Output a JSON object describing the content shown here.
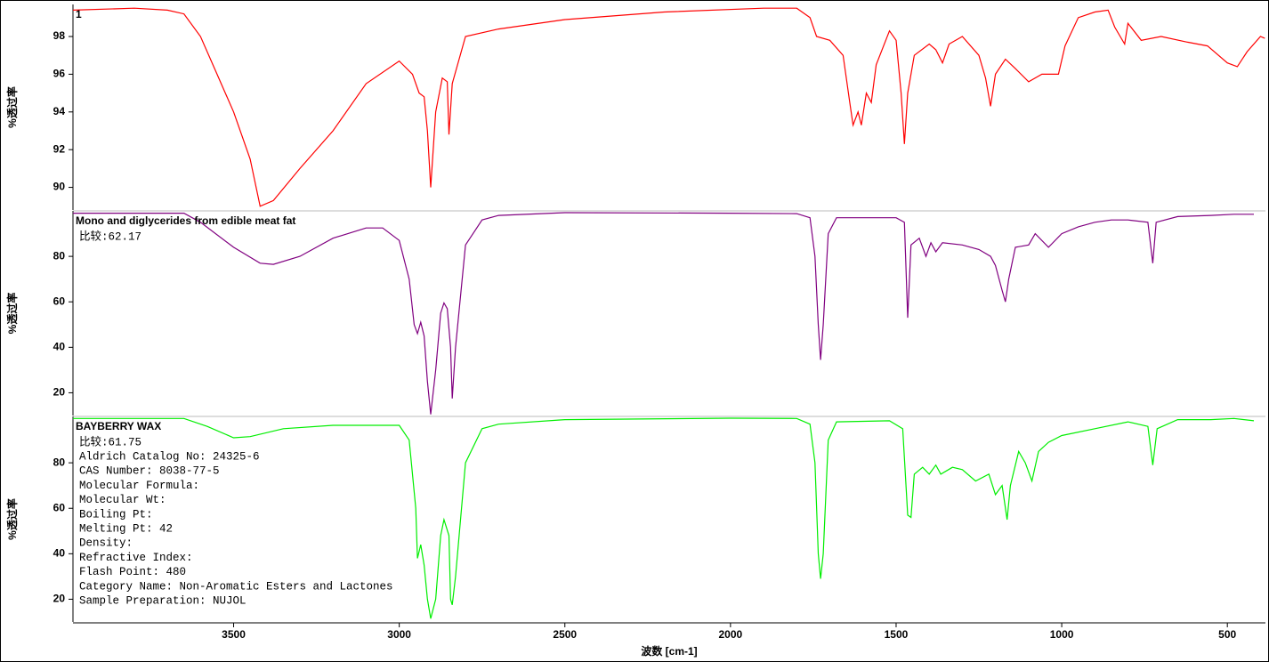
{
  "chart_data": [
    {
      "type": "line",
      "annotations": [
        "1"
      ],
      "y_label": "%透过率",
      "xlim": [
        3985,
        385
      ],
      "ylim": [
        88.8,
        99.7
      ],
      "yticks": [
        90,
        92,
        94,
        96,
        98
      ],
      "x": [
        3985,
        3800,
        3700,
        3650,
        3600,
        3550,
        3500,
        3450,
        3420,
        3380,
        3300,
        3200,
        3100,
        3000,
        2960,
        2940,
        2925,
        2915,
        2905,
        2890,
        2870,
        2855,
        2850,
        2840,
        2800,
        2700,
        2500,
        2200,
        1900,
        1800,
        1760,
        1740,
        1700,
        1660,
        1640,
        1630,
        1615,
        1605,
        1590,
        1575,
        1560,
        1520,
        1500,
        1485,
        1475,
        1465,
        1445,
        1400,
        1380,
        1360,
        1340,
        1300,
        1250,
        1230,
        1215,
        1200,
        1170,
        1140,
        1100,
        1060,
        1030,
        1010,
        990,
        950,
        900,
        860,
        840,
        810,
        800,
        760,
        700,
        620,
        560,
        500,
        470,
        440,
        400,
        387
      ],
      "series": [
        {
          "color": "#ff0000",
          "values": [
            99.4,
            99.5,
            99.4,
            99.2,
            98.0,
            96.0,
            94.0,
            91.5,
            89.0,
            89.3,
            91.0,
            93.0,
            95.5,
            96.7,
            96.0,
            95.0,
            94.8,
            93.0,
            90.0,
            94.0,
            95.8,
            95.6,
            92.8,
            95.5,
            98.0,
            98.4,
            98.9,
            99.3,
            99.5,
            99.5,
            99.0,
            98.0,
            97.8,
            97.0,
            94.5,
            93.3,
            94.0,
            93.3,
            95.0,
            94.5,
            96.5,
            98.3,
            97.8,
            95.0,
            92.3,
            95.0,
            97.0,
            97.6,
            97.3,
            96.6,
            97.6,
            98.0,
            97.0,
            95.8,
            94.3,
            96.0,
            96.8,
            96.3,
            95.6,
            96.0,
            96.0,
            96.0,
            97.5,
            99.0,
            99.3,
            99.4,
            98.5,
            97.6,
            98.7,
            97.8,
            98.0,
            97.7,
            97.5,
            96.6,
            96.4,
            97.2,
            98.0,
            97.9
          ]
        }
      ]
    },
    {
      "type": "line",
      "title": "Mono and diglycerides from edible meat fat",
      "annotations": [
        "比较:62.17"
      ],
      "y_label": "%透过率",
      "xlim": [
        3985,
        385
      ],
      "ylim": [
        10,
        100
      ],
      "yticks": [
        20,
        40,
        60,
        80
      ],
      "x": [
        3985,
        3650,
        3600,
        3500,
        3420,
        3380,
        3300,
        3200,
        3100,
        3050,
        3000,
        2970,
        2955,
        2945,
        2935,
        2925,
        2915,
        2905,
        2890,
        2875,
        2865,
        2855,
        2845,
        2840,
        2830,
        2800,
        2750,
        2700,
        2500,
        2000,
        1800,
        1760,
        1745,
        1735,
        1728,
        1720,
        1705,
        1680,
        1500,
        1475,
        1465,
        1455,
        1430,
        1410,
        1395,
        1380,
        1360,
        1300,
        1250,
        1215,
        1200,
        1180,
        1170,
        1160,
        1140,
        1100,
        1080,
        1040,
        1000,
        950,
        900,
        850,
        800,
        740,
        725,
        715,
        650,
        550,
        480,
        420
      ],
      "series": [
        {
          "color": "#800080",
          "values": [
            99,
            99,
            95,
            84,
            77,
            76.5,
            80,
            88,
            92.5,
            92.5,
            87,
            70,
            50,
            46,
            51,
            45,
            25,
            10.5,
            30,
            55,
            59.5,
            57,
            40,
            17.5,
            40,
            85,
            96,
            98,
            99.2,
            99,
            98.8,
            97,
            80,
            50,
            34.5,
            50,
            90,
            97,
            97,
            95,
            53,
            85,
            88,
            80,
            86,
            82,
            86,
            85,
            83,
            80,
            76,
            65,
            60,
            70,
            84,
            85,
            90,
            84,
            90,
            93,
            95,
            96,
            96,
            95,
            77,
            95,
            97.5,
            98,
            98.5,
            98.5
          ]
        }
      ]
    },
    {
      "type": "line",
      "title": "BAYBERRY WAX",
      "annotations": [
        "比较:61.75",
        "Aldrich Catalog No:  24325-6",
        "CAS Number:  8038-77-5",
        "Molecular Formula:",
        "Molecular Wt:",
        "Boiling Pt:",
        "Melting Pt:  42",
        "Density:",
        "Refractive Index:",
        "Flash Point:  480",
        "Category Name:  Non-Aromatic Esters and Lactones",
        "Sample Preparation:  NUJOL"
      ],
      "y_label": "%透过率",
      "x_label": "波数 [cm-1]",
      "xlim": [
        3985,
        385
      ],
      "ylim": [
        10,
        100.4
      ],
      "yticks": [
        20,
        40,
        60,
        80
      ],
      "xticks": [
        3500,
        3000,
        2500,
        2000,
        1500,
        1000,
        500
      ],
      "x": [
        3985,
        3650,
        3580,
        3500,
        3450,
        3350,
        3200,
        3000,
        2970,
        2950,
        2945,
        2935,
        2925,
        2915,
        2905,
        2890,
        2875,
        2865,
        2850,
        2845,
        2840,
        2830,
        2800,
        2750,
        2700,
        2500,
        2000,
        1800,
        1760,
        1745,
        1735,
        1728,
        1720,
        1705,
        1680,
        1520,
        1480,
        1465,
        1455,
        1445,
        1420,
        1400,
        1380,
        1365,
        1330,
        1300,
        1260,
        1220,
        1200,
        1180,
        1165,
        1155,
        1130,
        1110,
        1090,
        1070,
        1040,
        1000,
        900,
        800,
        740,
        725,
        712,
        650,
        550,
        480,
        420
      ],
      "series": [
        {
          "color": "#00ee00",
          "values": [
            99.5,
            99.5,
            96,
            91,
            91.5,
            95,
            96.5,
            96.5,
            90,
            60,
            38,
            44,
            35,
            20,
            11.5,
            20,
            48,
            55,
            48,
            20,
            17.5,
            30,
            80,
            95,
            97,
            99,
            99.6,
            99.5,
            97,
            80,
            40,
            29,
            40,
            90,
            98,
            98.5,
            95,
            57,
            56,
            75,
            78,
            75,
            79,
            75,
            78,
            77,
            72,
            75,
            66,
            70,
            55,
            70,
            85,
            80,
            72,
            85,
            89,
            92,
            95,
            98,
            96,
            79,
            95,
            99,
            99,
            99.5,
            98.5
          ]
        }
      ]
    }
  ]
}
